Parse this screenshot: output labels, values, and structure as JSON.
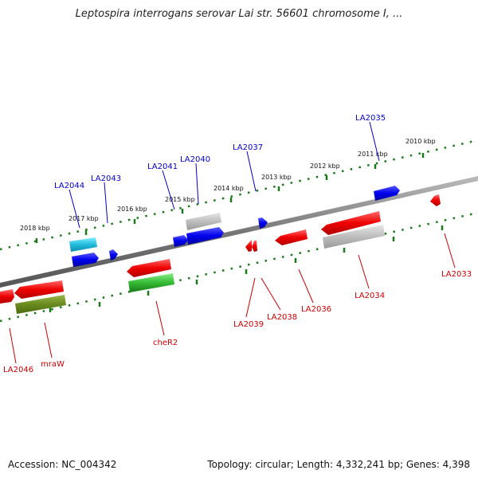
{
  "title": "Leptospira interrogans serovar Lai str. 56601 chromosome I, ...",
  "footer": {
    "accession": "Accession: NC_004342",
    "summary": "Topology: circular; Length: 4,332,241 bp; Genes: 4,398"
  },
  "scale_labels": [
    "2018 kbp",
    "2017 kbp",
    "2016 kbp",
    "2015 kbp",
    "2014 kbp",
    "2013 kbp",
    "2012 kbp",
    "2011 kbp",
    "2010 kbp"
  ],
  "genes_top": [
    "LA2044",
    "LA2043",
    "LA2041",
    "LA2040",
    "LA2037",
    "LA2035"
  ],
  "genes_bottom": [
    "LA2046",
    "mraW",
    "cheR2",
    "LA2039",
    "LA2038",
    "LA2036",
    "LA2034",
    "LA2033"
  ],
  "colors": {
    "forward_label": "#0000cc",
    "reverse_label": "#cc0000",
    "backbone": "#7a7a7a",
    "scale_ticks": "#1a7a1a"
  }
}
